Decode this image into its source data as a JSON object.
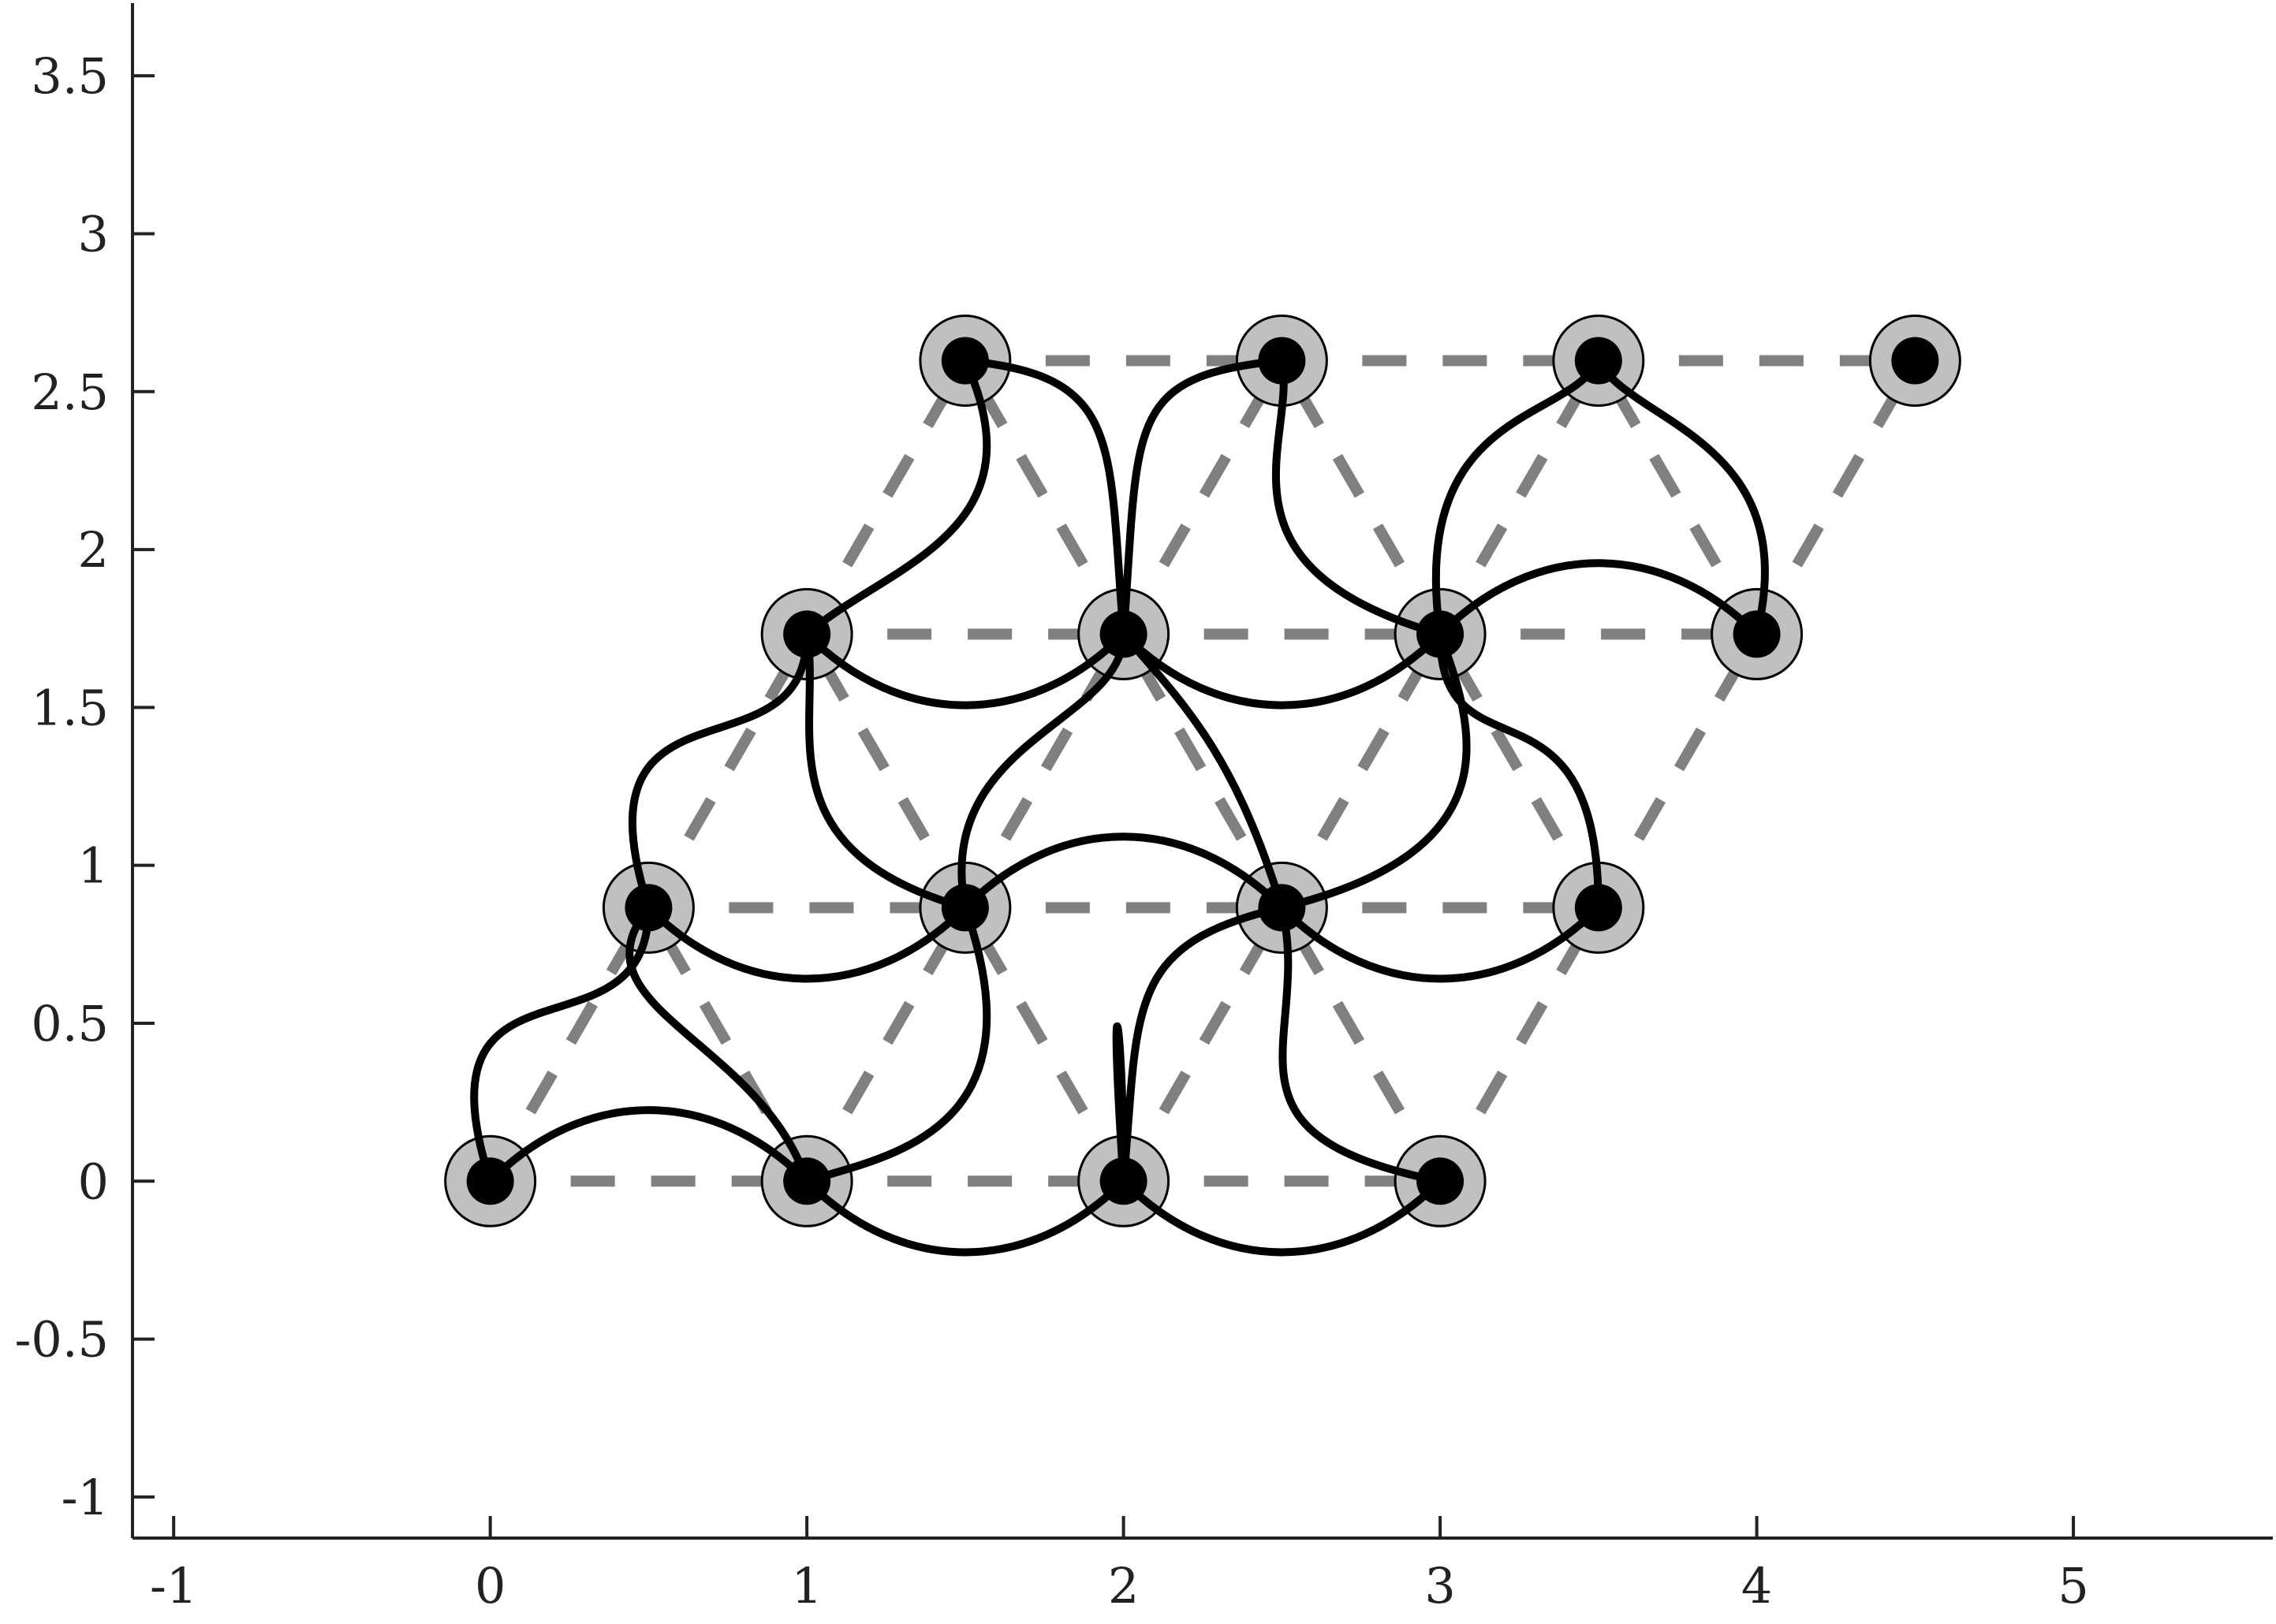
{
  "chart_data": {
    "type": "scatter",
    "title": "",
    "xlabel": "",
    "ylabel": "",
    "xlim": [
      -1.13,
      5.63
    ],
    "ylim": [
      -1.13,
      3.73
    ],
    "x_ticks": [
      {
        "value": -1,
        "label": "-1"
      },
      {
        "value": 0,
        "label": "0"
      },
      {
        "value": 1,
        "label": "1"
      },
      {
        "value": 2,
        "label": "2"
      },
      {
        "value": 3,
        "label": "3"
      },
      {
        "value": 4,
        "label": "4"
      },
      {
        "value": 5,
        "label": "5"
      }
    ],
    "y_ticks": [
      {
        "value": -1,
        "label": "-1"
      },
      {
        "value": -0.5,
        "label": "-0.5"
      },
      {
        "value": 0,
        "label": "0"
      },
      {
        "value": 0.5,
        "label": "0.5"
      },
      {
        "value": 1,
        "label": "1"
      },
      {
        "value": 1.5,
        "label": "1.5"
      },
      {
        "value": 2,
        "label": "2"
      },
      {
        "value": 2.5,
        "label": "2.5"
      },
      {
        "value": 3,
        "label": "3"
      },
      {
        "value": 3.5,
        "label": "3.5"
      }
    ],
    "nodes": [
      {
        "x": 0,
        "y": 0
      },
      {
        "x": 1,
        "y": 0
      },
      {
        "x": 2,
        "y": 0
      },
      {
        "x": 3,
        "y": 0
      },
      {
        "x": 0.5,
        "y": 0.866
      },
      {
        "x": 1.5,
        "y": 0.866
      },
      {
        "x": 2.5,
        "y": 0.866
      },
      {
        "x": 3.5,
        "y": 0.866
      },
      {
        "x": 1,
        "y": 1.732
      },
      {
        "x": 2,
        "y": 1.732
      },
      {
        "x": 3,
        "y": 1.732
      },
      {
        "x": 4,
        "y": 1.732
      },
      {
        "x": 1.5,
        "y": 2.598
      },
      {
        "x": 2.5,
        "y": 2.598
      },
      {
        "x": 3.5,
        "y": 2.598
      },
      {
        "x": 4.5,
        "y": 2.598
      }
    ],
    "lattice_edges": [
      [
        [
          0,
          0
        ],
        [
          1,
          0
        ]
      ],
      [
        [
          1,
          0
        ],
        [
          2,
          0
        ]
      ],
      [
        [
          2,
          0
        ],
        [
          3,
          0
        ]
      ],
      [
        [
          0.5,
          0.866
        ],
        [
          1.5,
          0.866
        ]
      ],
      [
        [
          1.5,
          0.866
        ],
        [
          2.5,
          0.866
        ]
      ],
      [
        [
          2.5,
          0.866
        ],
        [
          3.5,
          0.866
        ]
      ],
      [
        [
          1,
          1.732
        ],
        [
          2,
          1.732
        ]
      ],
      [
        [
          2,
          1.732
        ],
        [
          3,
          1.732
        ]
      ],
      [
        [
          3,
          1.732
        ],
        [
          4,
          1.732
        ]
      ],
      [
        [
          1.5,
          2.598
        ],
        [
          2.5,
          2.598
        ]
      ],
      [
        [
          2.5,
          2.598
        ],
        [
          3.5,
          2.598
        ]
      ],
      [
        [
          3.5,
          2.598
        ],
        [
          4.5,
          2.598
        ]
      ],
      [
        [
          0,
          0
        ],
        [
          0.5,
          0.866
        ]
      ],
      [
        [
          1,
          0
        ],
        [
          1.5,
          0.866
        ]
      ],
      [
        [
          2,
          0
        ],
        [
          2.5,
          0.866
        ]
      ],
      [
        [
          3,
          0
        ],
        [
          3.5,
          0.866
        ]
      ],
      [
        [
          0.5,
          0.866
        ],
        [
          1,
          1.732
        ]
      ],
      [
        [
          1.5,
          0.866
        ],
        [
          2,
          1.732
        ]
      ],
      [
        [
          2.5,
          0.866
        ],
        [
          3,
          1.732
        ]
      ],
      [
        [
          3.5,
          0.866
        ],
        [
          4,
          1.732
        ]
      ],
      [
        [
          1,
          1.732
        ],
        [
          1.5,
          2.598
        ]
      ],
      [
        [
          2,
          1.732
        ],
        [
          2.5,
          2.598
        ]
      ],
      [
        [
          3,
          1.732
        ],
        [
          3.5,
          2.598
        ]
      ],
      [
        [
          4,
          1.732
        ],
        [
          4.5,
          2.598
        ]
      ],
      [
        [
          1,
          0
        ],
        [
          0.5,
          0.866
        ]
      ],
      [
        [
          2,
          0
        ],
        [
          1.5,
          0.866
        ]
      ],
      [
        [
          3,
          0
        ],
        [
          2.5,
          0.866
        ]
      ],
      [
        [
          1.5,
          0.866
        ],
        [
          1,
          1.732
        ]
      ],
      [
        [
          2.5,
          0.866
        ],
        [
          2,
          1.732
        ]
      ],
      [
        [
          3.5,
          0.866
        ],
        [
          3,
          1.732
        ]
      ],
      [
        [
          2,
          1.732
        ],
        [
          1.5,
          2.598
        ]
      ],
      [
        [
          3,
          1.732
        ],
        [
          2.5,
          2.598
        ]
      ],
      [
        [
          4,
          1.732
        ],
        [
          3.5,
          2.598
        ]
      ]
    ],
    "curves": [
      {
        "p0": [
          0,
          0
        ],
        "c1": [
          0.3,
          0.3
        ],
        "c2": [
          0.7,
          0.3
        ],
        "p1": [
          1,
          0
        ]
      },
      {
        "p0": [
          1,
          0
        ],
        "c1": [
          1.3,
          -0.3
        ],
        "c2": [
          1.7,
          -0.3
        ],
        "p1": [
          2,
          0
        ]
      },
      {
        "p0": [
          2,
          0
        ],
        "c1": [
          2.3,
          -0.3
        ],
        "c2": [
          2.7,
          -0.3
        ],
        "p1": [
          3,
          0
        ]
      },
      {
        "p0": [
          0.5,
          0.866
        ],
        "c1": [
          0.8,
          0.566
        ],
        "c2": [
          1.2,
          0.566
        ],
        "p1": [
          1.5,
          0.866
        ]
      },
      {
        "p0": [
          1.5,
          0.866
        ],
        "c1": [
          1.8,
          1.166
        ],
        "c2": [
          2.2,
          1.166
        ],
        "p1": [
          2.5,
          0.866
        ]
      },
      {
        "p0": [
          2.5,
          0.866
        ],
        "c1": [
          2.8,
          0.566
        ],
        "c2": [
          3.2,
          0.566
        ],
        "p1": [
          3.5,
          0.866
        ]
      },
      {
        "p0": [
          1,
          1.732
        ],
        "c1": [
          1.3,
          1.432
        ],
        "c2": [
          1.7,
          1.432
        ],
        "p1": [
          2,
          1.732
        ]
      },
      {
        "p0": [
          2,
          1.732
        ],
        "c1": [
          2.3,
          1.432
        ],
        "c2": [
          2.7,
          1.432
        ],
        "p1": [
          3,
          1.732
        ]
      },
      {
        "p0": [
          3,
          1.732
        ],
        "c1": [
          3.3,
          2.032
        ],
        "c2": [
          3.7,
          2.032
        ],
        "p1": [
          4,
          1.732
        ]
      },
      {
        "p0": [
          0,
          0
        ],
        "c1": [
          -0.25,
          0.78
        ],
        "c2": [
          0.5,
          0.35
        ],
        "p1": [
          0.5,
          0.866
        ]
      },
      {
        "p0": [
          1,
          0
        ],
        "c1": [
          1.25,
          0.08
        ],
        "c2": [
          1.75,
          0.15
        ],
        "p1": [
          1.5,
          0.866
        ]
      },
      {
        "p0": [
          2,
          0
        ],
        "c1": [
          2.05,
          0.55
        ],
        "c2": [
          2,
          0.75
        ],
        "p1": [
          2.5,
          0.866
        ]
      },
      {
        "p0": [
          3,
          0
        ],
        "c1": [
          2.25,
          0.15
        ],
        "c2": [
          2.6,
          0.45
        ],
        "p1": [
          2.5,
          0.866
        ]
      },
      {
        "p0": [
          1,
          0
        ],
        "c1": [
          0.85,
          0.45
        ],
        "c2": [
          0.25,
          0.55
        ],
        "p1": [
          0.5,
          0.866
        ]
      },
      {
        "p0": [
          2,
          0
        ],
        "c1": [
          2,
          0.55
        ],
        "c2": [
          1.95,
          0.75
        ],
        "p1": [
          2,
          0
        ]
      },
      {
        "p0": [
          0.5,
          0.866
        ],
        "c1": [
          0.25,
          1.65
        ],
        "c2": [
          1,
          1.25
        ],
        "p1": [
          1,
          1.732
        ]
      },
      {
        "p0": [
          1.5,
          0.866
        ],
        "c1": [
          0.85,
          1.05
        ],
        "c2": [
          1.05,
          1.45
        ],
        "p1": [
          1,
          1.732
        ]
      },
      {
        "p0": [
          1.5,
          0.866
        ],
        "c1": [
          1.4,
          1.4
        ],
        "c2": [
          2,
          1.45
        ],
        "p1": [
          2,
          1.732
        ]
      },
      {
        "p0": [
          2.5,
          0.866
        ],
        "c1": [
          2.35,
          1.35
        ],
        "c2": [
          2.2,
          1.5
        ],
        "p1": [
          2,
          1.732
        ]
      },
      {
        "p0": [
          2.5,
          0.866
        ],
        "c1": [
          3.25,
          1.05
        ],
        "c2": [
          3.1,
          1.45
        ],
        "p1": [
          3,
          1.732
        ]
      },
      {
        "p0": [
          3.5,
          0.866
        ],
        "c1": [
          3.5,
          1.65
        ],
        "c2": [
          3,
          1.25
        ],
        "p1": [
          3,
          1.732
        ]
      },
      {
        "p0": [
          1,
          1.732
        ],
        "c1": [
          1.25,
          1.95
        ],
        "c2": [
          1.75,
          2.05
        ],
        "p1": [
          1.5,
          2.598
        ]
      },
      {
        "p0": [
          2,
          1.732
        ],
        "c1": [
          1.95,
          2.35
        ],
        "c2": [
          2,
          2.55
        ],
        "p1": [
          1.5,
          2.598
        ]
      },
      {
        "p0": [
          2,
          1.732
        ],
        "c1": [
          2.05,
          2.4
        ],
        "c2": [
          2,
          2.55
        ],
        "p1": [
          2.5,
          2.598
        ]
      },
      {
        "p0": [
          3,
          1.732
        ],
        "c1": [
          2.25,
          1.95
        ],
        "c2": [
          2.55,
          2.35
        ],
        "p1": [
          2.5,
          2.598
        ]
      },
      {
        "p0": [
          3,
          1.732
        ],
        "c1": [
          2.9,
          2.45
        ],
        "c2": [
          3.4,
          2.4
        ],
        "p1": [
          3.5,
          2.598
        ]
      },
      {
        "p0": [
          4,
          1.732
        ],
        "c1": [
          4.15,
          2.35
        ],
        "c2": [
          3.6,
          2.4
        ],
        "p1": [
          3.5,
          2.598
        ]
      }
    ],
    "colors": {
      "axis": "#222222",
      "lattice_edge": "#808080",
      "node_halo": "#c0c0c0",
      "node_core": "#000000",
      "curve": "#000000"
    }
  }
}
